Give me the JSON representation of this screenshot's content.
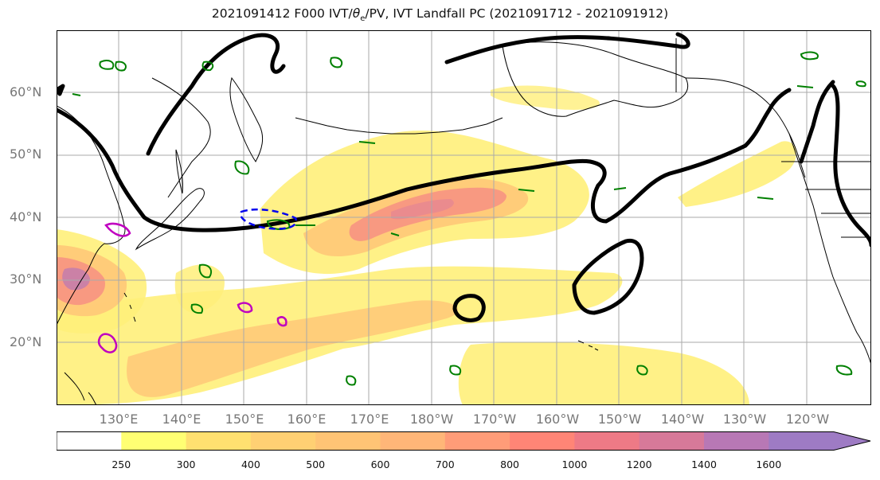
{
  "title": "2021091412 F000 IVT/θe/PV, IVT Landfall PC (2021091712 - 2021091912)",
  "title_parts": {
    "prefix": "2021091412 F000 IVT/",
    "theta": "θ",
    "sub": "e",
    "suffix": "/PV, IVT Landfall PC (2021091712 - 2021091912)"
  },
  "lat_labels": [
    "60°N",
    "50°N",
    "40°N",
    "30°N",
    "20°N"
  ],
  "lon_labels": [
    "130°E",
    "140°E",
    "150°E",
    "160°E",
    "170°E",
    "180°W",
    "170°W",
    "160°W",
    "150°W",
    "140°W",
    "130°W",
    "120°W"
  ],
  "colorbar": {
    "ticks": [
      "250",
      "300",
      "400",
      "500",
      "600",
      "700",
      "800",
      "1000",
      "1200",
      "1400",
      "1600"
    ],
    "colors": [
      "#ffffff",
      "#ffff73",
      "#ffe070",
      "#ffd073",
      "#ffc475",
      "#ffb678",
      "#ff9c78",
      "#ff8576",
      "#ee7a86",
      "#d77999",
      "#b878b5",
      "#9e7bc4"
    ]
  },
  "colors": {
    "ivt_light": "#ffef7a",
    "ivt_mid": "#ffc878",
    "ivt_high": "#f79482",
    "ivt_peak": "#c87fa8",
    "theta_contour": "#000000",
    "pv_positive": "#008000",
    "pv_magenta": "#c000c0",
    "pv_negative": "#0000ee",
    "coast": "#000000",
    "grid": "#aaaaaa"
  }
}
